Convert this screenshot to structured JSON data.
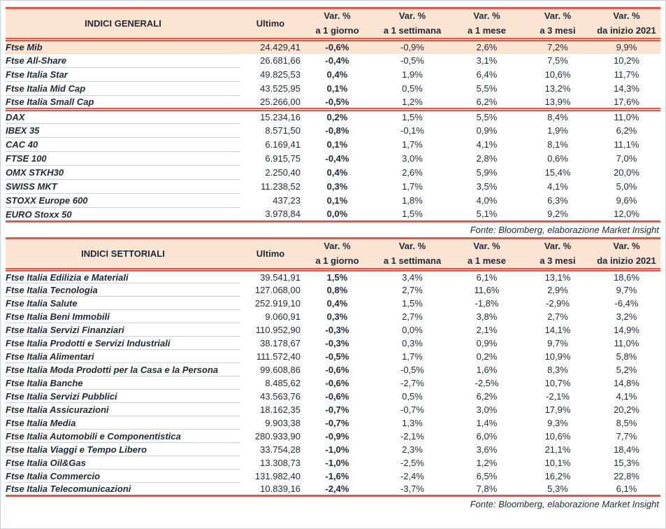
{
  "colors": {
    "accent_red": "#f05340",
    "header_bg": "#fce4d2",
    "highlight_row_bg": "#fce4d2",
    "text_dark": "#1c2a38",
    "row_divider": "#ccd2d8",
    "frame_border": "#c7d3e2"
  },
  "tables": [
    {
      "id": "indici-generali",
      "title": "INDICI GENERALI",
      "ultimo_header": "Ultimo",
      "var_headers": [
        [
          "Var. %",
          "a 1 giorno"
        ],
        [
          "Var. %",
          "a 1 settimana"
        ],
        [
          "Var. %",
          "a 1 mese"
        ],
        [
          "Var. %",
          "a 3 mesi"
        ],
        [
          "Var. %",
          "da inizio 2021"
        ]
      ],
      "groups": [
        {
          "rows": [
            {
              "name": "Ftse Mib",
              "ultimo": "24.429,41",
              "values": [
                "-0,6%",
                "-0,9%",
                "2,6%",
                "7,2%",
                "9,9%"
              ],
              "highlight": true
            },
            {
              "name": "Ftse All-Share",
              "ultimo": "26.681,66",
              "values": [
                "-0,4%",
                "-0,5%",
                "3,1%",
                "7,5%",
                "10,2%"
              ]
            },
            {
              "name": "Ftse Italia Star",
              "ultimo": "49.825,53",
              "values": [
                "0,4%",
                "1,9%",
                "6,4%",
                "10,6%",
                "11,7%"
              ]
            },
            {
              "name": "Ftse Italia Mid Cap",
              "ultimo": "43.525,95",
              "values": [
                "0,1%",
                "0,5%",
                "5,5%",
                "13,2%",
                "14,3%"
              ]
            },
            {
              "name": "Ftse Italia Small Cap",
              "ultimo": "25.266,00",
              "values": [
                "-0,5%",
                "1,2%",
                "6,2%",
                "13,9%",
                "17,6%"
              ]
            }
          ]
        },
        {
          "rows": [
            {
              "name": "DAX",
              "ultimo": "15.234,16",
              "values": [
                "0,2%",
                "1,5%",
                "5,5%",
                "8,4%",
                "11,0%"
              ]
            },
            {
              "name": "IBEX 35",
              "ultimo": "8.571,50",
              "values": [
                "-0,8%",
                "-0,1%",
                "0,9%",
                "1,9%",
                "6,2%"
              ]
            },
            {
              "name": "CAC 40",
              "ultimo": "6.169,41",
              "values": [
                "0,1%",
                "1,7%",
                "4,1%",
                "8,1%",
                "11,1%"
              ]
            },
            {
              "name": "FTSE 100",
              "ultimo": "6.915,75",
              "values": [
                "-0,4%",
                "3,0%",
                "2,8%",
                "0,6%",
                "7,0%"
              ]
            },
            {
              "name": "OMX STKH30",
              "ultimo": "2.250,40",
              "values": [
                "0,4%",
                "2,6%",
                "5,9%",
                "15,4%",
                "20,0%"
              ]
            },
            {
              "name": "SWISS MKT",
              "ultimo": "11.238,52",
              "values": [
                "0,3%",
                "1,7%",
                "3,5%",
                "4,1%",
                "5,0%"
              ]
            },
            {
              "name": "STOXX Europe 600",
              "ultimo": "437,23",
              "values": [
                "0,1%",
                "1,8%",
                "4,0%",
                "6,3%",
                "9,6%"
              ]
            },
            {
              "name": "EURO Stoxx 50",
              "ultimo": "3.978,84",
              "values": [
                "0,0%",
                "1,5%",
                "5,1%",
                "9,2%",
                "12,0%"
              ]
            }
          ]
        }
      ],
      "footer": "Fonte: Bloomberg, elaborazione Market Insight"
    },
    {
      "id": "indici-settoriali",
      "title": "INDICI SETTORIALI",
      "ultimo_header": "Ultimo",
      "var_headers": [
        [
          "Var. %",
          "a 1 giorno"
        ],
        [
          "Var. %",
          "a 1 settimana"
        ],
        [
          "Var. %",
          "a 1 mese"
        ],
        [
          "Var. %",
          "a 3 mesi"
        ],
        [
          "Var. %",
          "da inizio 2021"
        ]
      ],
      "groups": [
        {
          "rows": [
            {
              "name": "Ftse Italia Edilizia e Materiali",
              "ultimo": "39.541,91",
              "values": [
                "1,5%",
                "3,4%",
                "6,1%",
                "13,1%",
                "18,6%"
              ]
            },
            {
              "name": "Ftse Italia Tecnologia",
              "ultimo": "127.068,00",
              "values": [
                "0,8%",
                "2,7%",
                "11,6%",
                "2,9%",
                "9,7%"
              ]
            },
            {
              "name": "Ftse Italia Salute",
              "ultimo": "252.919,10",
              "values": [
                "0,4%",
                "1,5%",
                "-1,8%",
                "-2,9%",
                "-6,4%"
              ]
            },
            {
              "name": "Ftse Italia Beni Immobili",
              "ultimo": "9.060,91",
              "values": [
                "0,3%",
                "2,7%",
                "3,8%",
                "2,7%",
                "3,2%"
              ]
            },
            {
              "name": "Ftse Italia Servizi Finanziari",
              "ultimo": "110.952,90",
              "values": [
                "-0,3%",
                "0,0%",
                "2,1%",
                "14,1%",
                "14,9%"
              ]
            },
            {
              "name": "Ftse Italia Prodotti e Servizi Industriali",
              "ultimo": "38.178,67",
              "values": [
                "-0,3%",
                "0,3%",
                "0,9%",
                "9,7%",
                "11,0%"
              ]
            },
            {
              "name": "Ftse Italia Alimentari",
              "ultimo": "111.572,40",
              "values": [
                "-0,5%",
                "1,7%",
                "0,2%",
                "10,9%",
                "5,8%"
              ]
            },
            {
              "name": "Ftse Italia Moda Prodotti per la Casa e la Persona",
              "ultimo": "99.608,86",
              "values": [
                "-0,6%",
                "-0,5%",
                "1,6%",
                "8,3%",
                "5,2%"
              ]
            },
            {
              "name": "Ftse Italia Banche",
              "ultimo": "8.485,62",
              "values": [
                "-0,6%",
                "-2,7%",
                "-2,5%",
                "10,7%",
                "14,8%"
              ]
            },
            {
              "name": "Ftse Italia Servizi Pubblici",
              "ultimo": "43.563,76",
              "values": [
                "-0,6%",
                "0,5%",
                "6,2%",
                "-2,1%",
                "4,1%"
              ]
            },
            {
              "name": "Ftse Italia Assicurazioni",
              "ultimo": "18.162,35",
              "values": [
                "-0,7%",
                "-0,7%",
                "3,0%",
                "17,9%",
                "20,2%"
              ]
            },
            {
              "name": "Ftse Italia Media",
              "ultimo": "9.903,38",
              "values": [
                "-0,7%",
                "1,3%",
                "1,4%",
                "9,3%",
                "8,5%"
              ]
            },
            {
              "name": "Ftse Italia Automobili e Componentistica",
              "ultimo": "280.933,90",
              "values": [
                "-0,9%",
                "-2,1%",
                "6,0%",
                "10,6%",
                "7,7%"
              ]
            },
            {
              "name": "Ftse Italia Viaggi e Tempo Libero",
              "ultimo": "33.754,28",
              "values": [
                "-1,0%",
                "2,3%",
                "3,6%",
                "21,1%",
                "18,4%"
              ]
            },
            {
              "name": "Ftse Italia Oil&Gas",
              "ultimo": "13.308,73",
              "values": [
                "-1,0%",
                "-2,5%",
                "1,2%",
                "10,1%",
                "15,3%"
              ]
            },
            {
              "name": "Ftse Italia Commercio",
              "ultimo": "131.982,40",
              "values": [
                "-1,6%",
                "-2,4%",
                "6,5%",
                "16,2%",
                "22,8%"
              ]
            },
            {
              "name": "Ftse Italia Telecomunicazioni",
              "ultimo": "10.839,16",
              "values": [
                "-2,4%",
                "-3,7%",
                "7,8%",
                "5,3%",
                "6,1%"
              ]
            }
          ]
        }
      ],
      "footer": "Fonte: Bloomberg, elaborazione Market Insight"
    }
  ]
}
